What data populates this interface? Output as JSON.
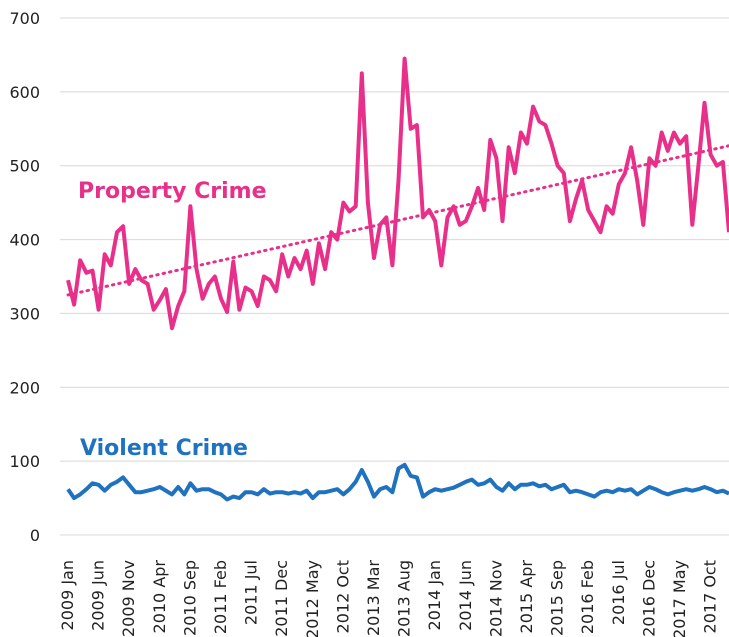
{
  "chart_data": {
    "type": "line",
    "categories": [
      "2009 Jan",
      null,
      null,
      null,
      null,
      "2009 Jun",
      null,
      null,
      null,
      null,
      "2009 Nov",
      null,
      null,
      null,
      null,
      "2010 Apr",
      null,
      null,
      null,
      null,
      "2010 Sep",
      null,
      null,
      null,
      null,
      "2011 Feb",
      null,
      null,
      null,
      null,
      "2011 Jul",
      null,
      null,
      null,
      null,
      "2011 Dec",
      null,
      null,
      null,
      null,
      "2012 May",
      null,
      null,
      null,
      null,
      "2012 Oct",
      null,
      null,
      null,
      null,
      "2013 Mar",
      null,
      null,
      null,
      null,
      "2013 Aug",
      null,
      null,
      null,
      null,
      "2014 Jan",
      null,
      null,
      null,
      null,
      "2014 Jun",
      null,
      null,
      null,
      null,
      "2014 Nov",
      null,
      null,
      null,
      null,
      "2015 Apr",
      null,
      null,
      null,
      null,
      "2015 Sep",
      null,
      null,
      null,
      null,
      "2016 Feb",
      null,
      null,
      null,
      null,
      "2016 Jul",
      null,
      null,
      null,
      null,
      "2016 Dec",
      null,
      null,
      null,
      null,
      "2017 May",
      null,
      null,
      null,
      null,
      "2017 Oct",
      null,
      null,
      null
    ],
    "series": [
      {
        "name": "Property Crime",
        "color": "#e8308a",
        "values": [
          345,
          312,
          372,
          355,
          358,
          305,
          380,
          365,
          410,
          418,
          340,
          360,
          345,
          340,
          305,
          318,
          333,
          280,
          310,
          330,
          445,
          360,
          320,
          340,
          350,
          320,
          302,
          370,
          305,
          335,
          330,
          310,
          350,
          345,
          330,
          380,
          350,
          375,
          360,
          385,
          340,
          395,
          360,
          410,
          400,
          450,
          438,
          445,
          625,
          450,
          375,
          420,
          430,
          365,
          480,
          645,
          550,
          555,
          430,
          440,
          425,
          365,
          430,
          445,
          420,
          425,
          445,
          470,
          440,
          535,
          510,
          425,
          525,
          490,
          545,
          530,
          580,
          560,
          555,
          530,
          500,
          490,
          425,
          455,
          480,
          440,
          425,
          410,
          445,
          435,
          475,
          490,
          525,
          480,
          420,
          510,
          500,
          545,
          520,
          545,
          530,
          540,
          420,
          500,
          585,
          515,
          500,
          505,
          410
        ]
      },
      {
        "name": "Violent Crime",
        "color": "#1f72c0",
        "values": [
          62,
          50,
          55,
          62,
          70,
          68,
          60,
          68,
          72,
          78,
          68,
          58,
          58,
          60,
          62,
          65,
          60,
          55,
          65,
          55,
          70,
          60,
          62,
          62,
          58,
          55,
          48,
          52,
          50,
          58,
          58,
          55,
          62,
          56,
          58,
          58,
          56,
          58,
          56,
          60,
          50,
          58,
          58,
          60,
          62,
          55,
          62,
          72,
          88,
          72,
          52,
          62,
          65,
          58,
          90,
          95,
          80,
          78,
          52,
          58,
          62,
          60,
          62,
          64,
          68,
          72,
          75,
          68,
          70,
          75,
          65,
          60,
          70,
          62,
          68,
          68,
          70,
          66,
          68,
          62,
          65,
          68,
          58,
          60,
          58,
          55,
          52,
          58,
          60,
          58,
          62,
          60,
          62,
          55,
          60,
          65,
          62,
          58,
          55,
          58,
          60,
          62,
          60,
          62,
          65,
          62,
          58,
          60,
          56
        ]
      }
    ],
    "trendline": {
      "color": "#e8308a",
      "values": [
        325,
        527
      ]
    },
    "ylim": [
      0,
      700
    ],
    "yticks": [
      0,
      100,
      200,
      300,
      400,
      500,
      600,
      700
    ],
    "grid": true
  }
}
